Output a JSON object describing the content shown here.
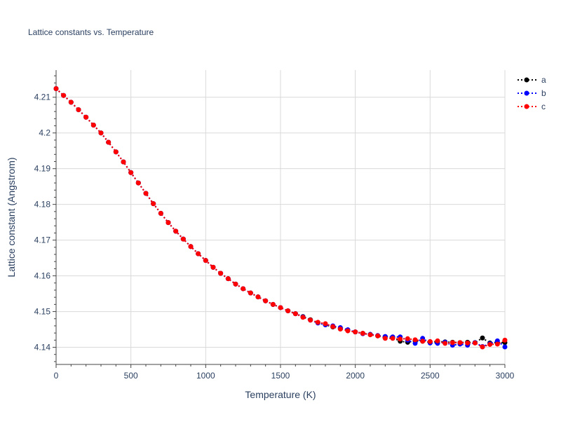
{
  "chart_data": {
    "type": "line",
    "title": "Lattice constants vs. Temperature",
    "xlabel": "Temperature (K)",
    "ylabel": "Lattice constant (Angstrom)",
    "xlim": [
      0,
      3000
    ],
    "ylim": [
      4.1352,
      4.2176
    ],
    "xticks": [
      0,
      500,
      1000,
      1500,
      2000,
      2500,
      3000
    ],
    "xtick_labels": [
      "0",
      "500",
      "1000",
      "1500",
      "2000",
      "2500",
      "3000"
    ],
    "yticks": [
      4.14,
      4.15,
      4.16,
      4.17,
      4.18,
      4.19,
      4.2,
      4.21
    ],
    "ytick_labels": [
      "4.14",
      "4.15",
      "4.16",
      "4.17",
      "4.18",
      "4.19",
      "4.2",
      "4.21"
    ],
    "grid": true,
    "legend_position": "top-right",
    "x": [
      0,
      50,
      100,
      150,
      200,
      250,
      300,
      350,
      400,
      450,
      500,
      550,
      600,
      650,
      700,
      750,
      800,
      850,
      900,
      950,
      1000,
      1050,
      1100,
      1150,
      1200,
      1250,
      1300,
      1350,
      1400,
      1450,
      1500,
      1550,
      1600,
      1650,
      1700,
      1750,
      1800,
      1850,
      1900,
      1950,
      2000,
      2050,
      2100,
      2150,
      2200,
      2250,
      2300,
      2350,
      2400,
      2450,
      2500,
      2550,
      2600,
      2650,
      2700,
      2750,
      2800,
      2850,
      2900,
      2950,
      3000
    ],
    "series": [
      {
        "name": "a",
        "color": "#000000",
        "values": [
          4.2124,
          4.2105,
          4.2086,
          4.2065,
          4.2044,
          4.2022,
          4.2,
          4.1974,
          4.1947,
          4.1919,
          4.1889,
          4.186,
          4.1831,
          4.1802,
          4.1775,
          4.1749,
          4.1725,
          4.1703,
          4.1682,
          4.1662,
          4.1643,
          4.1624,
          4.1607,
          4.1592,
          4.1577,
          4.1564,
          4.1552,
          4.1541,
          4.153,
          4.152,
          4.1511,
          4.1502,
          4.1494,
          4.1486,
          4.1477,
          4.1469,
          4.1463,
          4.1457,
          4.1452,
          4.1447,
          4.1443,
          4.1439,
          4.1436,
          4.1432,
          4.143,
          4.1427,
          4.1417,
          4.1414,
          4.1418,
          4.1417,
          4.1414,
          4.1416,
          4.1415,
          4.1414,
          4.1413,
          4.1414,
          4.1413,
          4.1426,
          4.1412,
          4.1413,
          4.1413
        ]
      },
      {
        "name": "b",
        "color": "#0000ff",
        "values": [
          4.2124,
          4.2105,
          4.2086,
          4.2065,
          4.2044,
          4.2022,
          4.2,
          4.1974,
          4.1947,
          4.1919,
          4.1889,
          4.186,
          4.1831,
          4.1802,
          4.1775,
          4.1749,
          4.1725,
          4.1703,
          4.1682,
          4.1662,
          4.1643,
          4.1624,
          4.1607,
          4.1592,
          4.1577,
          4.1564,
          4.1552,
          4.1541,
          4.153,
          4.152,
          4.1511,
          4.1502,
          4.1494,
          4.1485,
          4.1476,
          4.1468,
          4.1463,
          4.146,
          4.1455,
          4.1449,
          4.1443,
          4.1438,
          4.1436,
          4.1433,
          4.143,
          4.1429,
          4.1429,
          4.142,
          4.1411,
          4.1425,
          4.1412,
          4.1411,
          4.1414,
          4.1406,
          4.1409,
          4.1406,
          4.1413,
          4.1402,
          4.141,
          4.1418,
          4.1401
        ]
      },
      {
        "name": "c",
        "color": "#ff0000",
        "values": [
          4.2124,
          4.2105,
          4.2086,
          4.2065,
          4.2044,
          4.2022,
          4.2,
          4.1974,
          4.1947,
          4.1919,
          4.1889,
          4.186,
          4.1831,
          4.1802,
          4.1775,
          4.1749,
          4.1725,
          4.1703,
          4.1682,
          4.1662,
          4.1643,
          4.1624,
          4.1607,
          4.1592,
          4.1577,
          4.1564,
          4.1552,
          4.1541,
          4.153,
          4.152,
          4.1511,
          4.1502,
          4.1494,
          4.1484,
          4.1476,
          4.147,
          4.1466,
          4.1458,
          4.1451,
          4.1446,
          4.1443,
          4.1439,
          4.1435,
          4.1432,
          4.1425,
          4.1425,
          4.1423,
          4.1424,
          4.1421,
          4.1417,
          4.1416,
          4.1418,
          4.1411,
          4.1413,
          4.1413,
          4.1412,
          4.1412,
          4.1401,
          4.1408,
          4.1409,
          4.142
        ]
      }
    ]
  }
}
